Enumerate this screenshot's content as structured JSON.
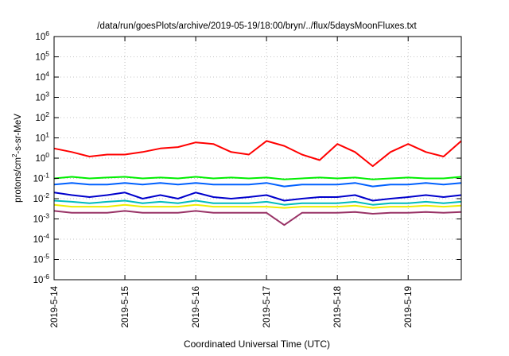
{
  "chart_data": {
    "type": "line",
    "title": "/data/run/goesPlots/archive/2019-05-19/18:00/bryn/../flux/5daysMoonFluxes.txt",
    "xlabel": "Coordinated Universal Time (UTC)",
    "ylabel": {
      "base": "protons/cm",
      "sup": "2",
      "rest": "-s-sr-MeV"
    },
    "yscale": "log",
    "ylim": [
      1e-06,
      1000000.0
    ],
    "ytick_exponents": [
      -6,
      -5,
      -4,
      -3,
      -2,
      -1,
      0,
      1,
      2,
      3,
      4,
      5,
      6
    ],
    "ytick_base": "10",
    "xlim": [
      "2019-05-14 00:00",
      "2019-05-19 18:00"
    ],
    "xticks": [
      "2019-5-14",
      "2019-5-15",
      "2019-5-16",
      "2019-5-17",
      "2019-5-18",
      "2019-5-19"
    ],
    "grid": true,
    "x_times": [
      "2019-05-14 00:00",
      "2019-05-14 06:00",
      "2019-05-14 12:00",
      "2019-05-14 18:00",
      "2019-05-15 00:00",
      "2019-05-15 06:00",
      "2019-05-15 12:00",
      "2019-05-15 18:00",
      "2019-05-16 00:00",
      "2019-05-16 06:00",
      "2019-05-16 12:00",
      "2019-05-16 18:00",
      "2019-05-17 00:00",
      "2019-05-17 06:00",
      "2019-05-17 12:00",
      "2019-05-17 18:00",
      "2019-05-18 00:00",
      "2019-05-18 06:00",
      "2019-05-18 12:00",
      "2019-05-18 18:00",
      "2019-05-19 00:00",
      "2019-05-19 06:00",
      "2019-05-19 12:00",
      "2019-05-19 18:00"
    ],
    "series": [
      {
        "color": "#ff0000",
        "values": [
          3,
          2,
          1.2,
          1.5,
          1.5,
          2,
          3,
          3.5,
          6,
          5,
          2,
          1.5,
          7,
          4,
          1.5,
          0.8,
          5,
          2,
          0.4,
          2,
          5,
          2,
          1.2,
          7
        ]
      },
      {
        "color": "#00ee00",
        "values": [
          0.1,
          0.12,
          0.1,
          0.11,
          0.12,
          0.1,
          0.11,
          0.1,
          0.12,
          0.1,
          0.11,
          0.1,
          0.11,
          0.09,
          0.1,
          0.11,
          0.1,
          0.11,
          0.09,
          0.1,
          0.11,
          0.1,
          0.1,
          0.12
        ]
      },
      {
        "color": "#0060ff",
        "values": [
          0.05,
          0.06,
          0.05,
          0.05,
          0.06,
          0.05,
          0.06,
          0.05,
          0.06,
          0.05,
          0.05,
          0.05,
          0.06,
          0.04,
          0.05,
          0.05,
          0.05,
          0.06,
          0.04,
          0.05,
          0.05,
          0.06,
          0.05,
          0.06
        ]
      },
      {
        "color": "#0000cc",
        "values": [
          0.02,
          0.015,
          0.012,
          0.015,
          0.02,
          0.01,
          0.015,
          0.01,
          0.02,
          0.012,
          0.01,
          0.012,
          0.015,
          0.008,
          0.01,
          0.012,
          0.012,
          0.015,
          0.008,
          0.01,
          0.012,
          0.015,
          0.012,
          0.015
        ]
      },
      {
        "color": "#00bbbb",
        "values": [
          0.008,
          0.007,
          0.006,
          0.007,
          0.008,
          0.006,
          0.007,
          0.006,
          0.008,
          0.006,
          0.006,
          0.006,
          0.007,
          0.005,
          0.006,
          0.006,
          0.006,
          0.007,
          0.005,
          0.006,
          0.006,
          0.007,
          0.006,
          0.007
        ]
      },
      {
        "color": "#eeee00",
        "values": [
          0.005,
          0.004,
          0.004,
          0.004,
          0.005,
          0.004,
          0.004,
          0.004,
          0.005,
          0.004,
          0.004,
          0.004,
          0.004,
          0.0035,
          0.004,
          0.004,
          0.004,
          0.0045,
          0.0035,
          0.004,
          0.004,
          0.0045,
          0.004,
          0.0045
        ]
      },
      {
        "color": "#993366",
        "values": [
          0.0025,
          0.002,
          0.002,
          0.002,
          0.0025,
          0.002,
          0.002,
          0.002,
          0.0025,
          0.002,
          0.002,
          0.002,
          0.002,
          0.0005,
          0.002,
          0.002,
          0.002,
          0.0022,
          0.0018,
          0.002,
          0.002,
          0.0022,
          0.002,
          0.0022
        ]
      }
    ]
  }
}
